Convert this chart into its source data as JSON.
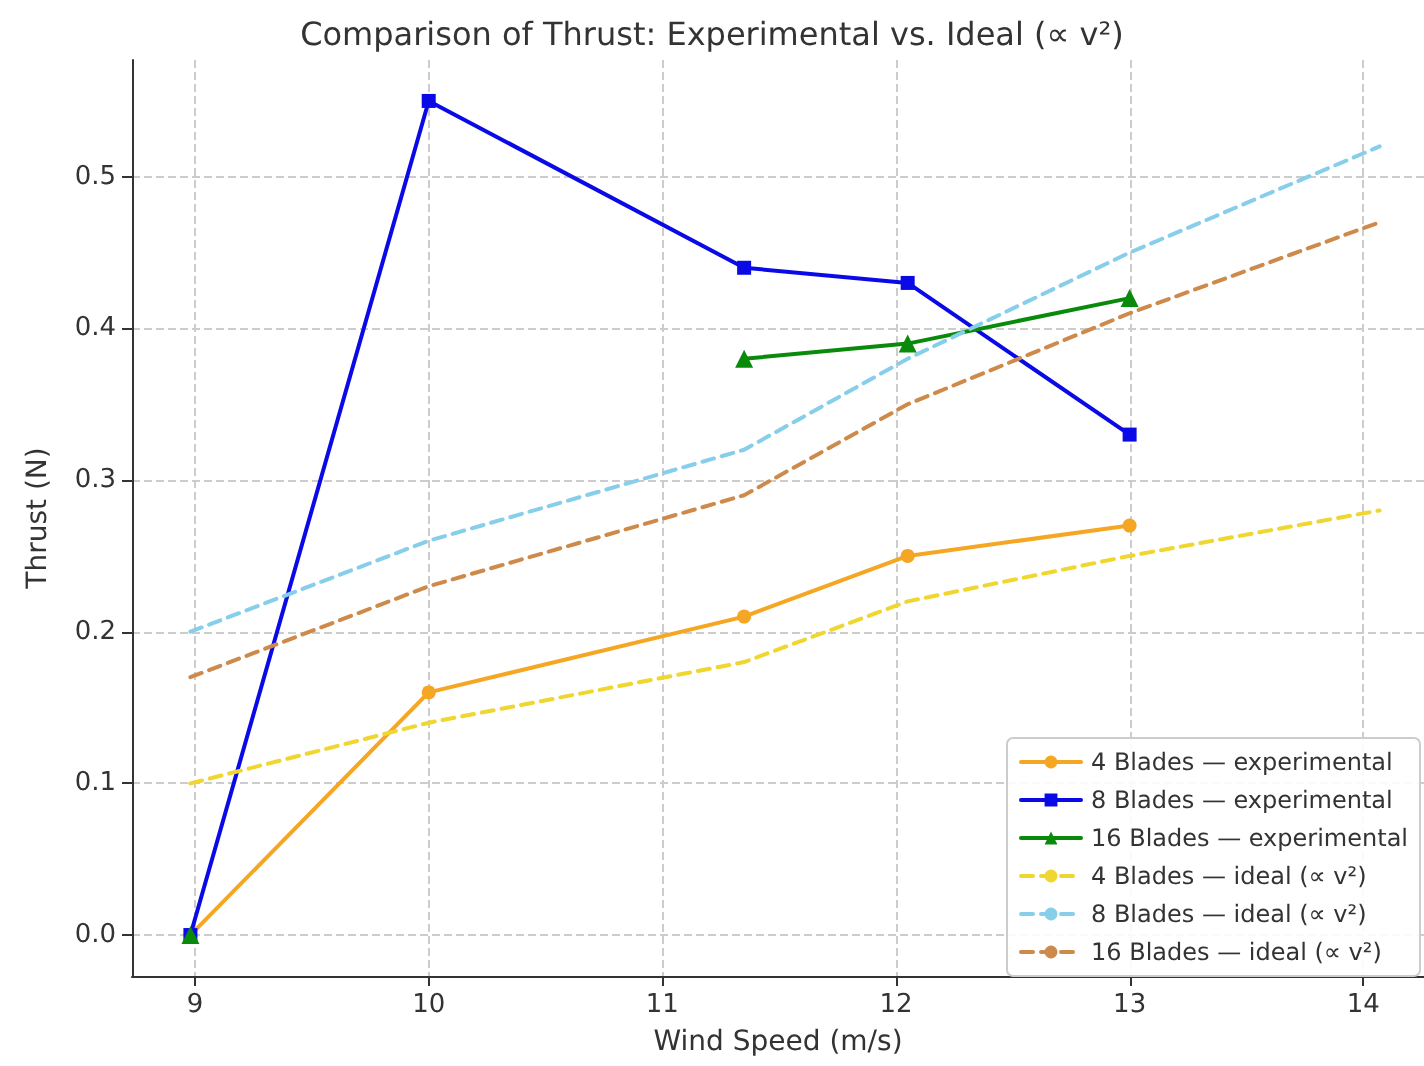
{
  "chart_data": {
    "type": "line",
    "title": "Comparison of Thrust: Experimental vs. Ideal (∝ v²)",
    "xlabel": "Wind Speed (m/s)",
    "ylabel": "Thrust (N)",
    "xlim": [
      8.73,
      14.26
    ],
    "xticks": [
      9,
      10,
      11,
      12,
      13,
      14
    ],
    "ylim": [
      -0.027,
      0.577
    ],
    "yticks": [
      {
        "value": 0,
        "label": "0.0"
      },
      {
        "value": 0.1,
        "label": "0.1"
      },
      {
        "value": 0.2,
        "label": "0.2"
      },
      {
        "value": 0.3,
        "label": "0.3"
      },
      {
        "value": 0.4,
        "label": "0.4"
      },
      {
        "value": 0.5,
        "label": "0.5"
      }
    ],
    "grid": true,
    "legend": "bottom right",
    "series": [
      {
        "name": "4 Blades — experimental",
        "color": "#f5a623",
        "marker": "circle",
        "line_style": "solid",
        "x": [
          8.98,
          10,
          11.35,
          12.05,
          13
        ],
        "values": [
          0,
          0.16,
          0.21,
          0.25,
          0.27
        ]
      },
      {
        "name": "8 Blades — experimental",
        "color": "#0a0ae6",
        "marker": "square",
        "line_style": "solid",
        "x": [
          8.98,
          10,
          11.35,
          12.05,
          13
        ],
        "values": [
          0,
          0.55,
          0.44,
          0.43,
          0.33
        ]
      },
      {
        "name": "16 Blades — experimental",
        "color": "#0a8a0a",
        "marker": "triangle",
        "line_style": "solid",
        "x": [
          8.98,
          10,
          11.35,
          12.05,
          13
        ],
        "values": [
          0,
          null,
          0.38,
          0.39,
          0.42
        ]
      },
      {
        "name": "4 Blades — ideal (∝ v²)",
        "color": "#f0d630",
        "marker": "none",
        "line_style": "dashed",
        "x": [
          8.98,
          10,
          11.35,
          12.05,
          13,
          14.07
        ],
        "values": [
          0.1,
          0.14,
          0.18,
          0.22,
          0.25,
          0.28
        ]
      },
      {
        "name": "8 Blades — ideal (∝ v²)",
        "color": "#87ceeb",
        "marker": "none",
        "line_style": "dashed",
        "x": [
          8.98,
          10,
          11.35,
          12.05,
          13,
          14.07
        ],
        "values": [
          0.2,
          0.26,
          0.32,
          0.38,
          0.45,
          0.52
        ]
      },
      {
        "name": "16 Blades — ideal (∝ v²)",
        "color": "#cd8a4a",
        "marker": "none",
        "line_style": "dashed",
        "x": [
          8.98,
          10,
          11.35,
          12.05,
          13,
          14.07
        ],
        "values": [
          0.17,
          0.23,
          0.29,
          0.35,
          0.41,
          0.47
        ]
      }
    ]
  }
}
